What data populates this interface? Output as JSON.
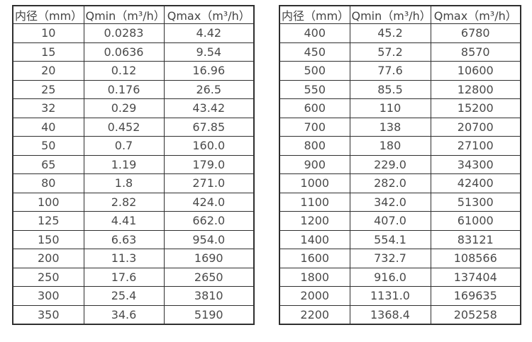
{
  "colors": {
    "border": "#2f2f2f",
    "text": "#4a4a4a",
    "background": "#ffffff"
  },
  "tables": [
    {
      "name": "diameter-flow-table-small",
      "headers": [
        "内径（mm）",
        "Qmin（m³/h）",
        "Qmax（m³/h）"
      ],
      "rows": [
        [
          "10",
          "0.0283",
          "4.42"
        ],
        [
          "15",
          "0.0636",
          "9.54"
        ],
        [
          "20",
          "0.12",
          "16.96"
        ],
        [
          "25",
          "0.176",
          "26.5"
        ],
        [
          "32",
          "0.29",
          "43.42"
        ],
        [
          "40",
          "0.452",
          "67.85"
        ],
        [
          "50",
          "0.7",
          "160.0"
        ],
        [
          "65",
          "1.19",
          "179.0"
        ],
        [
          "80",
          "1.8",
          "271.0"
        ],
        [
          "100",
          "2.82",
          "424.0"
        ],
        [
          "125",
          "4.41",
          "662.0"
        ],
        [
          "150",
          "6.63",
          "954.0"
        ],
        [
          "200",
          "11.3",
          "1690"
        ],
        [
          "250",
          "17.6",
          "2650"
        ],
        [
          "300",
          "25.4",
          "3810"
        ],
        [
          "350",
          "34.6",
          "5190"
        ]
      ]
    },
    {
      "name": "diameter-flow-table-large",
      "headers": [
        "内径（mm）",
        "Qmin（m³/h）",
        "Qmax（m³/h）"
      ],
      "rows": [
        [
          "400",
          "45.2",
          "6780"
        ],
        [
          "450",
          "57.2",
          "8570"
        ],
        [
          "500",
          "77.6",
          "10600"
        ],
        [
          "550",
          "85.5",
          "12800"
        ],
        [
          "600",
          "110",
          "15200"
        ],
        [
          "700",
          "138",
          "20700"
        ],
        [
          "800",
          "180",
          "27100"
        ],
        [
          "900",
          "229.0",
          "34300"
        ],
        [
          "1000",
          "282.0",
          "42400"
        ],
        [
          "1100",
          "342.0",
          "51300"
        ],
        [
          "1200",
          "407.0",
          "61000"
        ],
        [
          "1400",
          "554.1",
          "83121"
        ],
        [
          "1600",
          "732.7",
          "108566"
        ],
        [
          "1800",
          "916.0",
          "137404"
        ],
        [
          "2000",
          "1131.0",
          "169635"
        ],
        [
          "2200",
          "1368.4",
          "205258"
        ]
      ]
    }
  ]
}
